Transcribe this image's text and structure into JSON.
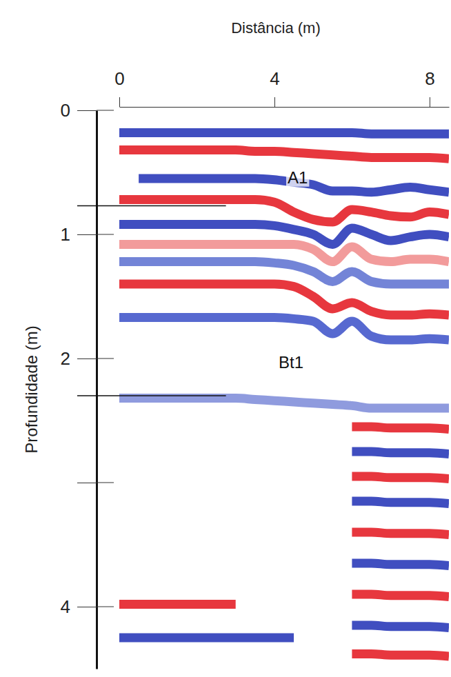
{
  "chart_data": {
    "type": "line",
    "x_label": "Distância (m)",
    "y_label": "Profundidade (m)",
    "xlim": [
      0,
      8.5
    ],
    "ylim": [
      0,
      4.5
    ],
    "xticks": [
      0,
      4,
      8
    ],
    "yticks": [
      0,
      1,
      2,
      {
        "value": 3,
        "label": null
      },
      4
    ],
    "x": [
      0,
      0.5,
      1,
      1.5,
      2,
      2.5,
      3,
      3.5,
      4,
      4.5,
      5,
      5.5,
      6,
      6.5,
      7,
      7.5,
      8,
      8.5
    ],
    "series": [
      {
        "color": "#1f2fb5",
        "values": [
          0.18,
          0.18,
          0.18,
          0.18,
          0.18,
          0.18,
          0.18,
          0.18,
          0.18,
          0.18,
          0.18,
          0.18,
          0.18,
          0.19,
          0.19,
          0.19,
          0.19,
          0.19
        ]
      },
      {
        "color": "#e3141c",
        "values": [
          0.32,
          0.32,
          0.32,
          0.32,
          0.32,
          0.32,
          0.32,
          0.33,
          0.33,
          0.34,
          0.35,
          0.36,
          0.37,
          0.38,
          0.38,
          0.38,
          0.38,
          0.39
        ]
      },
      {
        "color": "#1f2fb5",
        "values": [
          null,
          0.55,
          0.55,
          0.55,
          0.55,
          0.55,
          0.55,
          0.55,
          0.56,
          0.58,
          0.6,
          0.65,
          0.65,
          0.66,
          0.64,
          0.62,
          0.64,
          0.66
        ]
      },
      {
        "color": "#e3141c",
        "values": [
          0.72,
          0.72,
          0.72,
          0.72,
          0.72,
          0.72,
          0.72,
          0.72,
          0.74,
          0.82,
          0.88,
          0.9,
          0.8,
          0.82,
          0.85,
          0.86,
          0.82,
          0.84
        ]
      },
      {
        "color": "#1f2fb5",
        "values": [
          0.92,
          0.92,
          0.92,
          0.92,
          0.92,
          0.92,
          0.92,
          0.92,
          0.93,
          0.96,
          1.0,
          1.08,
          0.95,
          1.0,
          1.05,
          1.02,
          1.0,
          1.02
        ]
      },
      {
        "color": "#f08a8a",
        "values": [
          1.08,
          1.08,
          1.08,
          1.08,
          1.08,
          1.08,
          1.08,
          1.08,
          1.08,
          1.08,
          1.12,
          1.22,
          1.1,
          1.2,
          1.22,
          1.2,
          1.2,
          1.22
        ]
      },
      {
        "color": "#5a6fd0",
        "values": [
          1.22,
          1.22,
          1.22,
          1.22,
          1.22,
          1.22,
          1.22,
          1.22,
          1.23,
          1.25,
          1.3,
          1.38,
          1.3,
          1.38,
          1.4,
          1.4,
          1.4,
          1.4
        ]
      },
      {
        "color": "#e3141c",
        "values": [
          1.4,
          1.4,
          1.4,
          1.4,
          1.4,
          1.4,
          1.4,
          1.4,
          1.4,
          1.42,
          1.5,
          1.6,
          1.55,
          1.62,
          1.65,
          1.65,
          1.64,
          1.65
        ]
      },
      {
        "color": "#3a4fc8",
        "values": [
          1.67,
          1.67,
          1.67,
          1.67,
          1.67,
          1.67,
          1.67,
          1.67,
          1.67,
          1.68,
          1.7,
          1.8,
          1.7,
          1.82,
          1.85,
          1.85,
          1.84,
          1.85
        ]
      },
      {
        "color": "#7b8ad8",
        "values": [
          2.32,
          2.32,
          2.32,
          2.32,
          2.32,
          2.32,
          2.32,
          2.33,
          2.34,
          2.35,
          2.36,
          2.37,
          2.38,
          2.4,
          2.4,
          2.4,
          2.4,
          2.4
        ]
      },
      {
        "color": "#e3141c",
        "values": [
          null,
          null,
          null,
          null,
          null,
          null,
          null,
          null,
          null,
          null,
          null,
          null,
          2.55,
          2.55,
          2.56,
          2.56,
          2.56,
          2.57
        ]
      },
      {
        "color": "#1f2fb5",
        "values": [
          null,
          null,
          null,
          null,
          null,
          null,
          null,
          null,
          null,
          null,
          null,
          null,
          2.75,
          2.75,
          2.76,
          2.76,
          2.76,
          2.77
        ]
      },
      {
        "color": "#e3141c",
        "values": [
          null,
          null,
          null,
          null,
          null,
          null,
          null,
          null,
          null,
          null,
          null,
          null,
          2.95,
          2.95,
          2.96,
          2.96,
          2.96,
          2.97
        ]
      },
      {
        "color": "#1f2fb5",
        "values": [
          null,
          null,
          null,
          null,
          null,
          null,
          null,
          null,
          null,
          null,
          null,
          null,
          3.15,
          3.15,
          3.16,
          3.16,
          3.16,
          3.17
        ]
      },
      {
        "color": "#e3141c",
        "values": [
          null,
          null,
          null,
          null,
          null,
          null,
          null,
          null,
          null,
          null,
          null,
          null,
          3.4,
          3.4,
          3.41,
          3.41,
          3.41,
          3.42
        ]
      },
      {
        "color": "#1f2fb5",
        "values": [
          null,
          null,
          null,
          null,
          null,
          null,
          null,
          null,
          null,
          null,
          null,
          null,
          3.65,
          3.65,
          3.66,
          3.66,
          3.66,
          3.67
        ]
      },
      {
        "color": "#e3141c",
        "values": [
          3.98,
          3.98,
          3.98,
          3.98,
          3.98,
          3.98,
          3.98,
          null,
          null,
          null,
          null,
          null,
          3.9,
          3.9,
          3.91,
          3.91,
          3.91,
          3.92
        ]
      },
      {
        "color": "#1f2fb5",
        "values": [
          4.25,
          4.25,
          4.25,
          4.25,
          4.25,
          4.25,
          4.25,
          4.25,
          4.25,
          4.25,
          null,
          null,
          4.15,
          4.15,
          4.16,
          4.16,
          4.16,
          4.17
        ]
      },
      {
        "color": "#e3141c",
        "values": [
          null,
          null,
          null,
          null,
          null,
          null,
          null,
          null,
          null,
          null,
          null,
          null,
          4.38,
          4.38,
          4.39,
          4.39,
          4.39,
          4.4
        ]
      }
    ],
    "boundary_lines": [
      {
        "y": 0.77,
        "x_end": 2.75
      },
      {
        "y": 2.3,
        "x_end": 2.75
      }
    ],
    "annotations": [
      {
        "text": "A1",
        "x": 4.6,
        "y": 0.54
      },
      {
        "text": "Bt1",
        "x": 4.43,
        "y": 2.03
      }
    ]
  }
}
